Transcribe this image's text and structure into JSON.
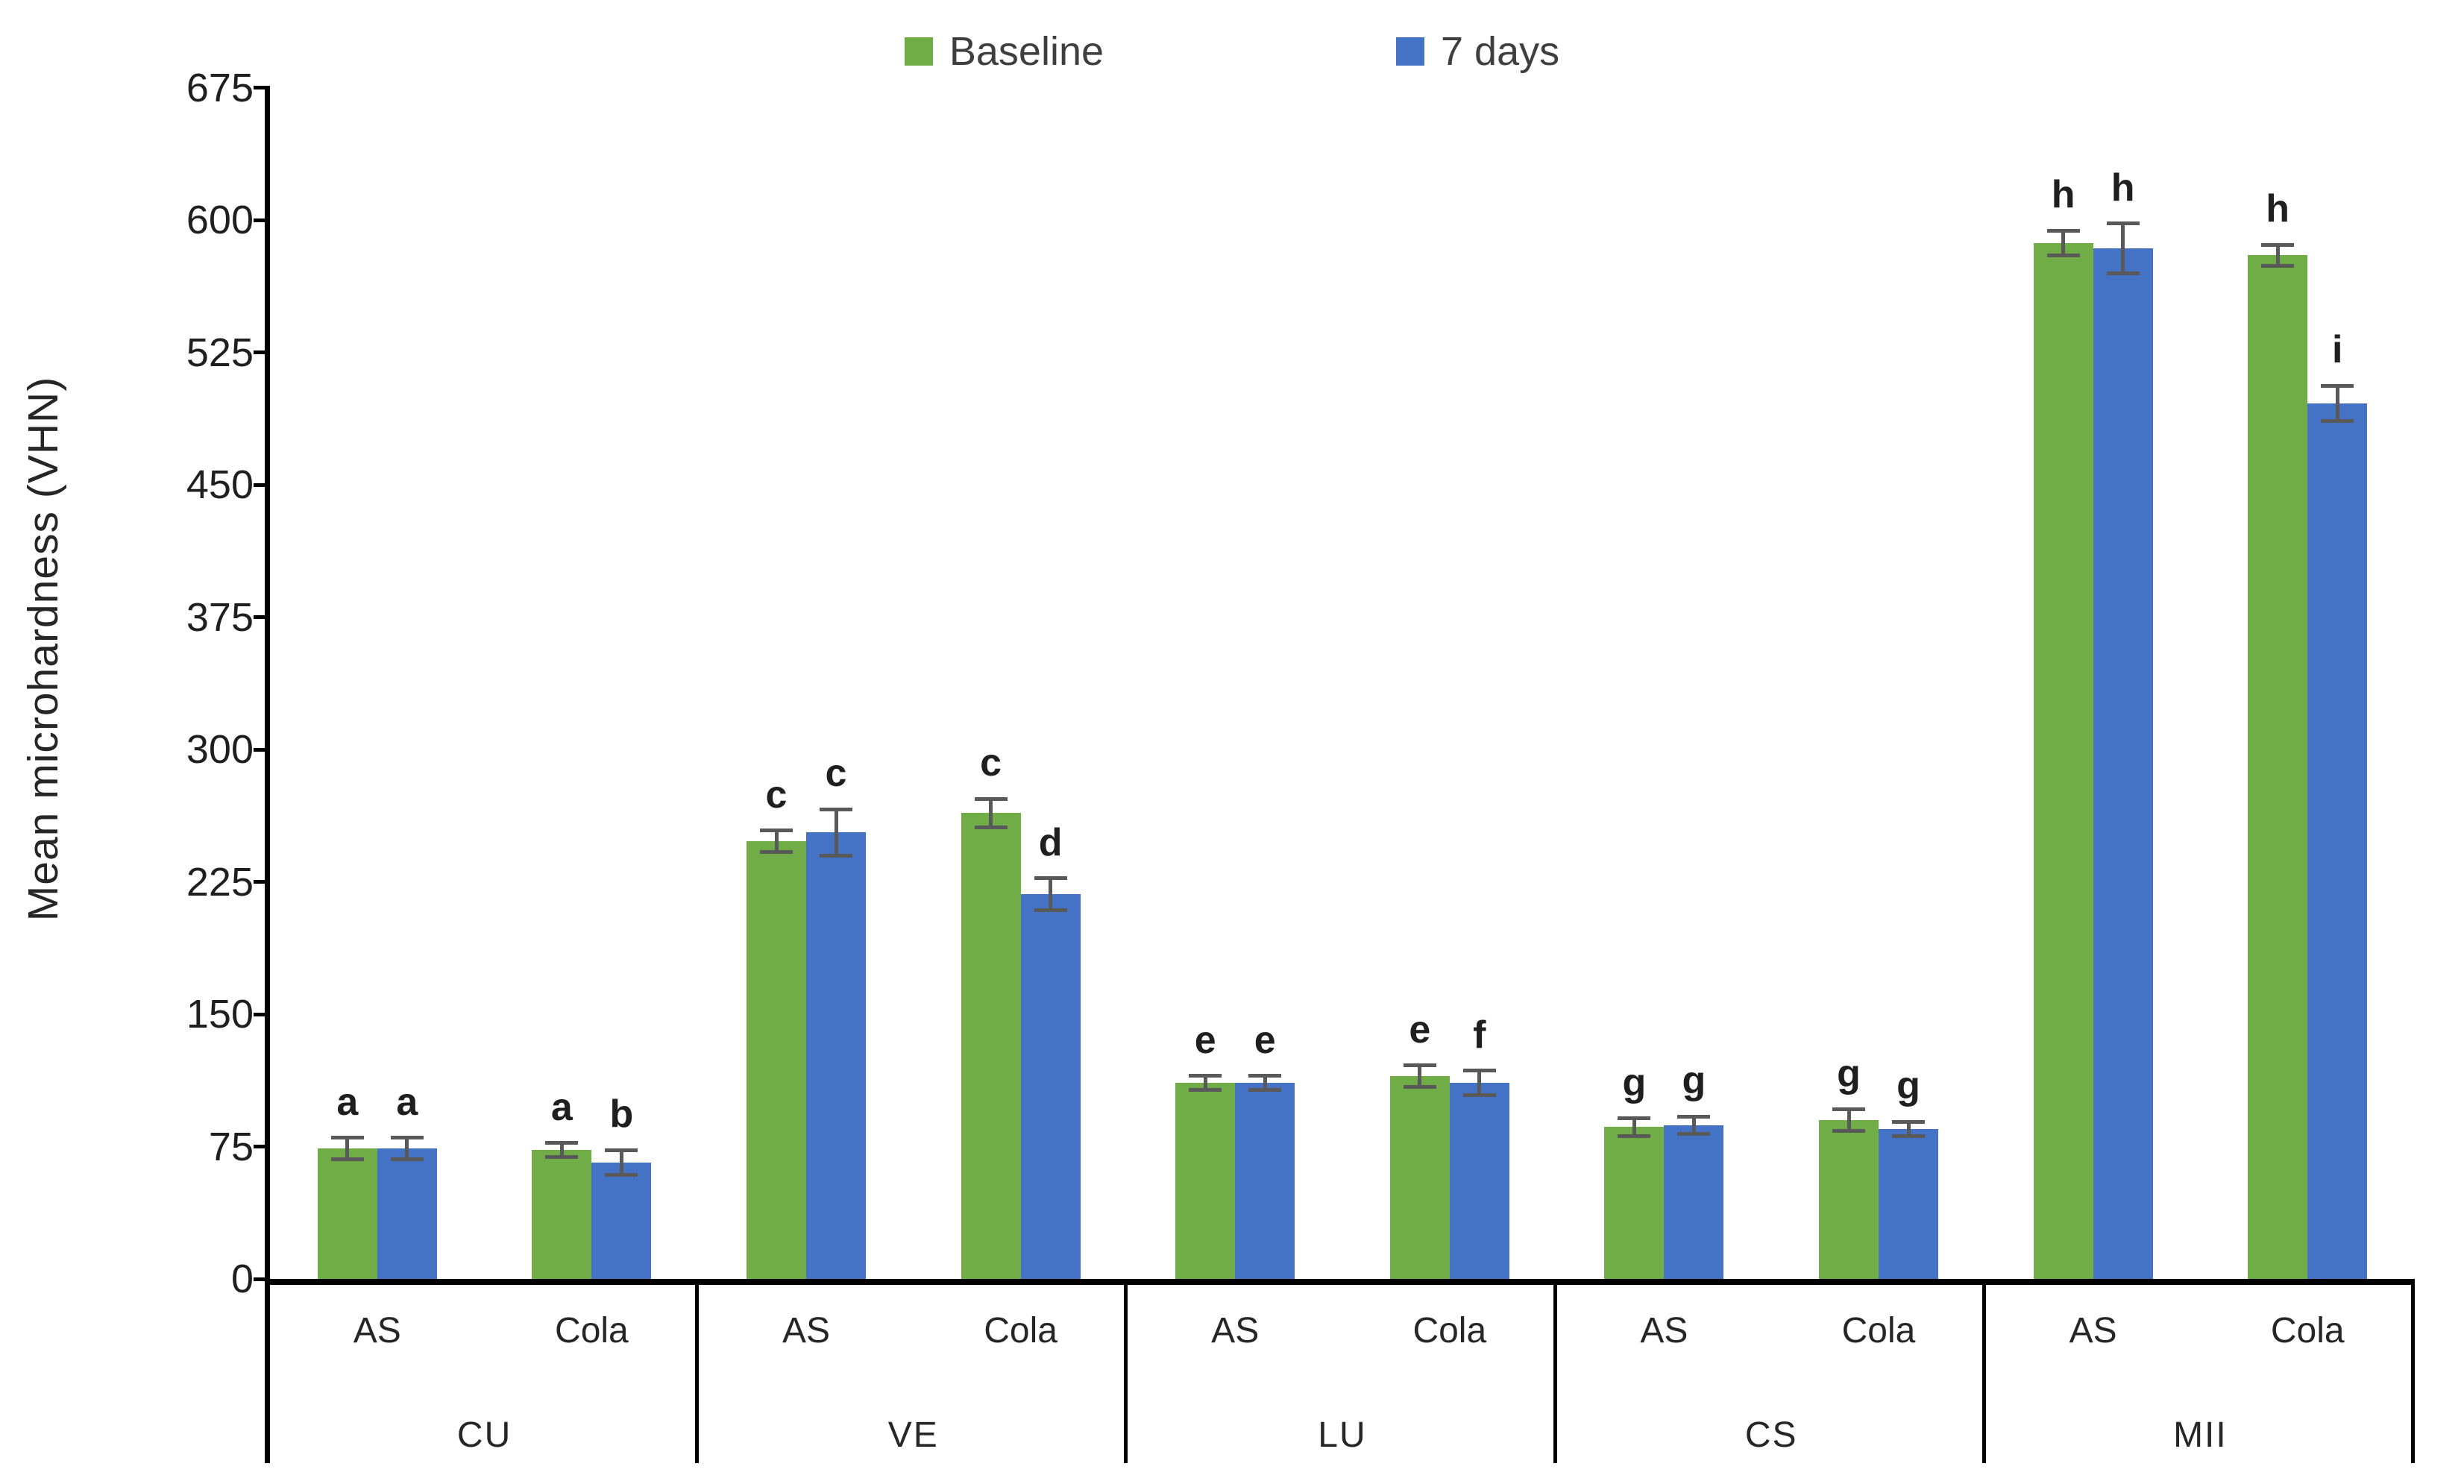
{
  "legend": {
    "items": [
      {
        "label": "Baseline",
        "color": "#70ad47"
      },
      {
        "label": "7 days",
        "color": "#4472c4"
      }
    ]
  },
  "y_axis": {
    "title": "Mean microhardness (VHN)",
    "tick_labels": [
      "0",
      "75",
      "150",
      "225",
      "300",
      "375",
      "450",
      "525",
      "600",
      "675"
    ],
    "min": 0,
    "max": 675,
    "step": 75
  },
  "x_axis": {
    "subcategory_labels": [
      "AS",
      "Cola"
    ],
    "group_labels": [
      "CU",
      "VE",
      "LU",
      "CS",
      "MII"
    ]
  },
  "chart_data": {
    "type": "bar",
    "title": "",
    "xlabel": "",
    "ylabel": "Mean microhardness (VHN)",
    "ylim": [
      0,
      675
    ],
    "ytick_step": 75,
    "grid": false,
    "legend_position": "top-center",
    "categories": [
      "CU",
      "VE",
      "LU",
      "CS",
      "MII"
    ],
    "subcategories": [
      "AS",
      "Cola"
    ],
    "series": [
      {
        "name": "Baseline",
        "color": "#70ad47",
        "values": [
          [
            74,
            73
          ],
          [
            248,
            264
          ],
          [
            111,
            115
          ],
          [
            86,
            90
          ],
          [
            587,
            580
          ]
        ],
        "errors": [
          [
            6,
            4
          ],
          [
            6,
            8
          ],
          [
            4,
            6
          ],
          [
            5,
            6
          ],
          [
            7,
            6
          ]
        ],
        "letters": [
          [
            "a",
            "a"
          ],
          [
            "c",
            "c"
          ],
          [
            "e",
            "e"
          ],
          [
            "g",
            "g"
          ],
          [
            "h",
            "h"
          ]
        ]
      },
      {
        "name": "7 days",
        "color": "#4472c4",
        "values": [
          [
            74,
            66
          ],
          [
            253,
            218
          ],
          [
            111,
            111
          ],
          [
            87,
            85
          ],
          [
            584,
            496
          ]
        ],
        "errors": [
          [
            6,
            7
          ],
          [
            13,
            9
          ],
          [
            4,
            7
          ],
          [
            5,
            4
          ],
          [
            14,
            10
          ]
        ],
        "letters": [
          [
            "a",
            "b"
          ],
          [
            "c",
            "d"
          ],
          [
            "e",
            "f"
          ],
          [
            "g",
            "g"
          ],
          [
            "h",
            "i"
          ]
        ]
      }
    ],
    "error_bar_color": "#595959",
    "axis_color": "#000000"
  }
}
